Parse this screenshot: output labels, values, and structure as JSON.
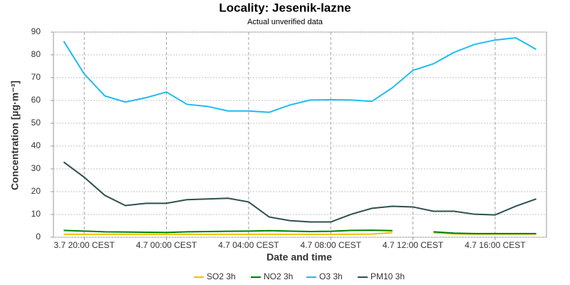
{
  "chart_data": {
    "type": "line",
    "title": "Locality: Jesenik-lazne",
    "subtitle": "Actual unverified data",
    "x_label": "Date and time",
    "y_label": "Concentration [µg·m⁻³]",
    "x": [
      19,
      20,
      21,
      22,
      23,
      24,
      25,
      26,
      27,
      28,
      29,
      30,
      31,
      32,
      33,
      34,
      35,
      36,
      37,
      38,
      39,
      40,
      41,
      42
    ],
    "xlim": [
      18.5,
      42.5
    ],
    "xticks": [
      {
        "value": 20,
        "label": "3.7 20:00 CEST"
      },
      {
        "value": 24,
        "label": "4.7 00:00 CEST"
      },
      {
        "value": 28,
        "label": "4.7 04:00 CEST"
      },
      {
        "value": 32,
        "label": "4.7 08:00 CEST"
      },
      {
        "value": 36,
        "label": "4.7 12:00 CEST"
      },
      {
        "value": 40,
        "label": "4.7 16:00 CEST"
      }
    ],
    "ylim": [
      0,
      90
    ],
    "yticks": [
      0,
      10,
      20,
      30,
      40,
      50,
      60,
      70,
      80,
      90
    ],
    "grid": true,
    "legend": "bottom",
    "series": [
      {
        "name": "SO2 3h",
        "color": "#f2c200",
        "values": [
          1.3,
          1.3,
          1.3,
          1.3,
          1.3,
          1.3,
          1.3,
          1.3,
          1.3,
          1.3,
          1.3,
          1.3,
          1.3,
          1.3,
          1.3,
          1.4,
          2.0,
          null,
          2.0,
          1.5,
          1.4,
          1.4,
          1.4,
          1.4
        ]
      },
      {
        "name": "NO2 3h",
        "color": "#008000",
        "values": [
          3.0,
          2.7,
          2.4,
          2.3,
          2.2,
          2.1,
          2.4,
          2.5,
          2.6,
          2.7,
          2.9,
          2.7,
          2.5,
          2.6,
          3.0,
          3.1,
          2.9,
          null,
          2.4,
          1.8,
          1.6,
          1.6,
          1.6,
          1.6
        ]
      },
      {
        "name": "O3 3h",
        "color": "#1ebcf0",
        "values": [
          86,
          71.6,
          62,
          59.3,
          61.2,
          63.7,
          58.3,
          57.4,
          55.4,
          55.4,
          54.8,
          58,
          60.2,
          60.3,
          60.2,
          59.6,
          65.6,
          73.2,
          76.1,
          81.1,
          84.6,
          86.5,
          87.5,
          82.4
        ]
      },
      {
        "name": "PM10 3h",
        "color": "#2f4f4f",
        "values": [
          33,
          26.3,
          18.4,
          13.9,
          14.9,
          14.9,
          16.5,
          16.8,
          17.1,
          15.5,
          8.9,
          7.3,
          6.7,
          6.7,
          10.1,
          12.7,
          13.6,
          13.3,
          11.4,
          11.4,
          10.1,
          9.8,
          13.6,
          16.8
        ]
      }
    ]
  }
}
